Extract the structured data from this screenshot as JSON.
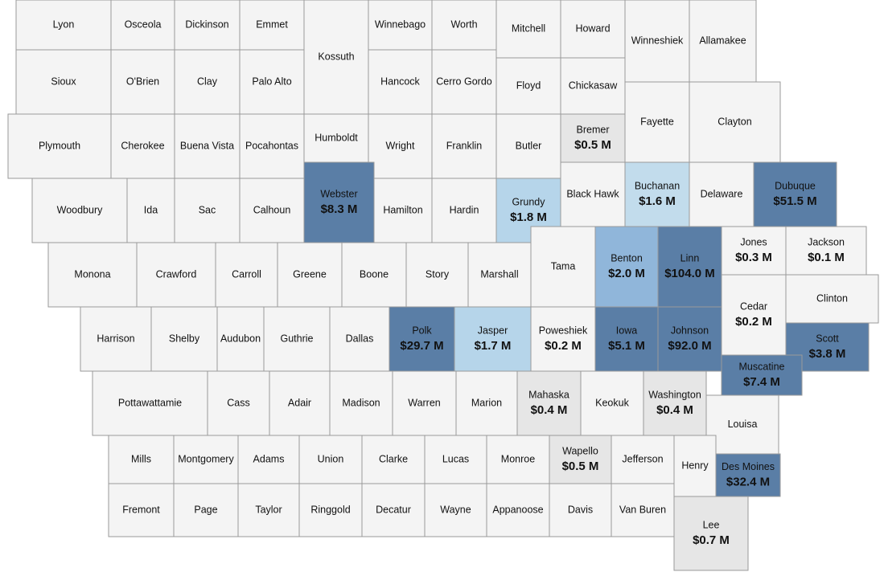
{
  "map": {
    "default_color": "#f4f4f4",
    "counties": [
      {
        "name": "Lyon"
      },
      {
        "name": "Osceola"
      },
      {
        "name": "Dickinson"
      },
      {
        "name": "Emmet"
      },
      {
        "name": "Kossuth"
      },
      {
        "name": "Winnebago"
      },
      {
        "name": "Worth"
      },
      {
        "name": "Mitchell"
      },
      {
        "name": "Howard"
      },
      {
        "name": "Winneshiek"
      },
      {
        "name": "Allamakee"
      },
      {
        "name": "Sioux"
      },
      {
        "name": "O'Brien"
      },
      {
        "name": "Clay"
      },
      {
        "name": "Palo Alto"
      },
      {
        "name": "Hancock"
      },
      {
        "name": "Cerro Gordo"
      },
      {
        "name": "Floyd"
      },
      {
        "name": "Chickasaw"
      },
      {
        "name": "Fayette"
      },
      {
        "name": "Clayton"
      },
      {
        "name": "Plymouth"
      },
      {
        "name": "Cherokee"
      },
      {
        "name": "Buena Vista"
      },
      {
        "name": "Pocahontas"
      },
      {
        "name": "Humboldt"
      },
      {
        "name": "Wright"
      },
      {
        "name": "Franklin"
      },
      {
        "name": "Butler"
      },
      {
        "name": "Bremer",
        "label": "$0.5 M",
        "color": "#e6e6e6"
      },
      {
        "name": "Woodbury"
      },
      {
        "name": "Ida"
      },
      {
        "name": "Sac"
      },
      {
        "name": "Calhoun"
      },
      {
        "name": "Webster",
        "label": "$8.3 M",
        "color": "#5a7ea6"
      },
      {
        "name": "Hamilton"
      },
      {
        "name": "Hardin"
      },
      {
        "name": "Grundy",
        "label": "$1.8 M",
        "color": "#b6d5ea"
      },
      {
        "name": "Black Hawk"
      },
      {
        "name": "Buchanan",
        "label": "$1.6 M",
        "color": "#c2dcec"
      },
      {
        "name": "Delaware"
      },
      {
        "name": "Dubuque",
        "label": "$51.5 M",
        "color": "#5a7ea6"
      },
      {
        "name": "Monona"
      },
      {
        "name": "Crawford"
      },
      {
        "name": "Carroll"
      },
      {
        "name": "Greene"
      },
      {
        "name": "Boone"
      },
      {
        "name": "Story"
      },
      {
        "name": "Marshall"
      },
      {
        "name": "Tama"
      },
      {
        "name": "Benton",
        "label": "$2.0 M",
        "color": "#90b6da"
      },
      {
        "name": "Linn",
        "label": "$104.0 M",
        "color": "#5a7ea6"
      },
      {
        "name": "Jones",
        "label": "$0.3 M"
      },
      {
        "name": "Jackson",
        "label": "$0.1 M"
      },
      {
        "name": "Harrison"
      },
      {
        "name": "Shelby"
      },
      {
        "name": "Audubon"
      },
      {
        "name": "Guthrie"
      },
      {
        "name": "Dallas"
      },
      {
        "name": "Polk",
        "label": "$29.7 M",
        "color": "#5a7ea6"
      },
      {
        "name": "Jasper",
        "label": "$1.7 M",
        "color": "#b6d5ea"
      },
      {
        "name": "Poweshiek",
        "label": "$0.2 M"
      },
      {
        "name": "Iowa",
        "label": "$5.1 M",
        "color": "#5a7ea6"
      },
      {
        "name": "Johnson",
        "label": "$92.0 M",
        "color": "#5a7ea6"
      },
      {
        "name": "Cedar",
        "label": "$0.2 M"
      },
      {
        "name": "Clinton"
      },
      {
        "name": "Scott",
        "label": "$3.8 M",
        "color": "#5a7ea6"
      },
      {
        "name": "Muscatine",
        "label": "$7.4 M",
        "color": "#5a7ea6"
      },
      {
        "name": "Pottawattamie"
      },
      {
        "name": "Cass"
      },
      {
        "name": "Adair"
      },
      {
        "name": "Madison"
      },
      {
        "name": "Warren"
      },
      {
        "name": "Marion"
      },
      {
        "name": "Mahaska",
        "label": "$0.4 M",
        "color": "#e6e6e6"
      },
      {
        "name": "Keokuk"
      },
      {
        "name": "Washington",
        "label": "$0.4 M",
        "color": "#e6e6e6"
      },
      {
        "name": "Louisa"
      },
      {
        "name": "Mills"
      },
      {
        "name": "Montgomery"
      },
      {
        "name": "Adams"
      },
      {
        "name": "Union"
      },
      {
        "name": "Clarke"
      },
      {
        "name": "Lucas"
      },
      {
        "name": "Monroe"
      },
      {
        "name": "Wapello",
        "label": "$0.5 M",
        "color": "#e6e6e6"
      },
      {
        "name": "Jefferson"
      },
      {
        "name": "Henry"
      },
      {
        "name": "Des Moines",
        "label": "$32.4 M",
        "color": "#5a7ea6"
      },
      {
        "name": "Fremont"
      },
      {
        "name": "Page"
      },
      {
        "name": "Taylor"
      },
      {
        "name": "Ringgold"
      },
      {
        "name": "Decatur"
      },
      {
        "name": "Wayne"
      },
      {
        "name": "Appanoose"
      },
      {
        "name": "Davis"
      },
      {
        "name": "Van Buren"
      },
      {
        "name": "Lee",
        "label": "$0.7 M",
        "color": "#e6e6e6"
      }
    ]
  }
}
